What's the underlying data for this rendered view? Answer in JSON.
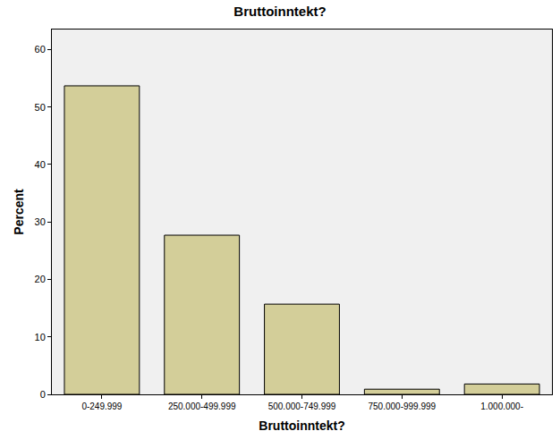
{
  "chart_data": {
    "type": "bar",
    "title": "Bruttoinntekt?",
    "x_label": "Bruttoinntekt?",
    "y_label": "Percent",
    "categories": [
      "0-249.999",
      "250.000-499.999",
      "500.000-749.999",
      "750.000-999.999",
      "1.000.000-"
    ],
    "values": [
      53.7,
      27.7,
      15.7,
      0.9,
      1.8
    ],
    "color": "#d3ce99",
    "ylim": [
      0,
      63.5
    ],
    "yticks": [
      0,
      10,
      20,
      30,
      40,
      50,
      60
    ],
    "grid": false
  }
}
